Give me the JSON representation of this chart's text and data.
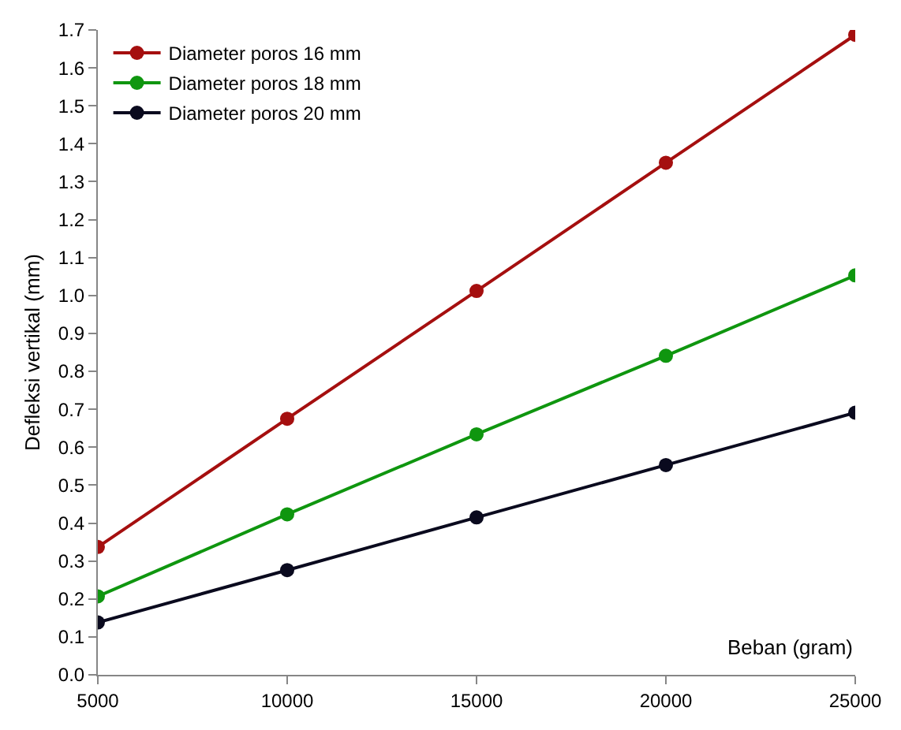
{
  "chart_data": {
    "type": "line",
    "xlabel": "Beban (gram)",
    "ylabel": "Defleksi vertikal (mm)",
    "x": [
      5000,
      10000,
      15000,
      20000,
      25000
    ],
    "series": [
      {
        "name": "Diameter poros 16 mm",
        "color": "#a50f0f",
        "values": [
          0.337,
          0.675,
          1.012,
          1.35,
          1.687
        ]
      },
      {
        "name": "Diameter poros 18 mm",
        "color": "#0f960f",
        "values": [
          0.207,
          0.423,
          0.634,
          0.841,
          1.053
        ]
      },
      {
        "name": "Diameter poros 20 mm",
        "color": "#0a0a1e",
        "values": [
          0.138,
          0.276,
          0.415,
          0.553,
          0.691
        ]
      }
    ],
    "xlim": [
      5000,
      25000
    ],
    "xticks": [
      5000,
      10000,
      15000,
      20000,
      25000
    ],
    "ylim": [
      0,
      1.7
    ],
    "yticks": [
      {
        "value": 0,
        "label": "0.0"
      },
      0.1,
      0.2,
      0.3,
      0.4,
      0.5,
      0.6,
      0.7,
      0.8,
      0.9,
      {
        "value": 1,
        "label": "1.0"
      },
      1.1,
      1.2,
      1.3,
      1.4,
      1.5,
      1.6,
      1.7
    ],
    "legend": "top left",
    "marker": "circle",
    "line_style": "solid"
  }
}
